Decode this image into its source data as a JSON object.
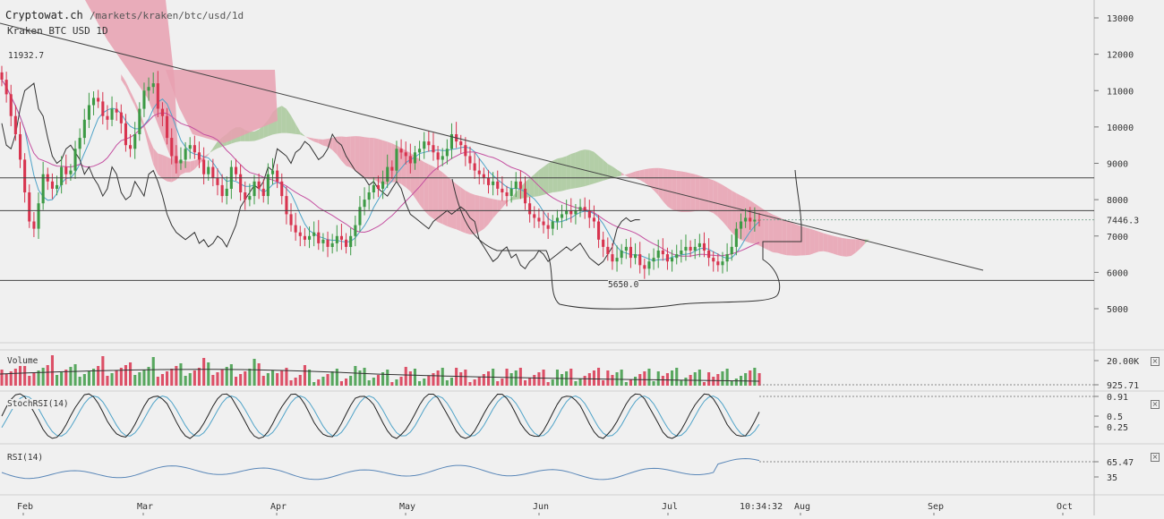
{
  "header": {
    "brand": "Cryptowat.ch",
    "path": "/markets/kraken/btc/usd/1d",
    "subtitle": "Kraken BTC USD 1D"
  },
  "colors": {
    "background": "#f0f0f0",
    "up_candle": "#3d9a45",
    "down_candle": "#d8344f",
    "cloud_bear": "#e8a0b0",
    "cloud_bull": "#a8c89a",
    "tenkan": "#4fa3c8",
    "kijun": "#c44fa0",
    "chikou": "#333333",
    "stoch_k": "#222222",
    "stoch_d": "#4fa3c8",
    "rsi": "#5a87b8"
  },
  "chart_data": [
    {
      "type": "candlestick",
      "name": "main",
      "x": [
        "Feb",
        "Mar",
        "Apr",
        "May",
        "Jun",
        "Jul",
        "Aug",
        "Sep",
        "Oct"
      ],
      "y_ticks": [
        5000,
        6000,
        7000,
        8000,
        9000,
        10000,
        11000,
        12000,
        13000
      ],
      "ylim": [
        4200,
        13500
      ],
      "annotations": {
        "high_label": "11932.7",
        "low_label": "5650.0",
        "last_price": "7446.3",
        "time": "10:34:32"
      },
      "horizontal_levels": [
        8600,
        7700,
        5780
      ],
      "trendline": {
        "from": [
          "Jan 25",
          12900
        ],
        "to": [
          "Sep 6",
          6000
        ]
      },
      "closes": [
        11300,
        10900,
        10300,
        9800,
        9100,
        8200,
        7400,
        7200,
        7900,
        8700,
        8500,
        8300,
        8400,
        8900,
        8700,
        8800,
        9400,
        9700,
        10200,
        10600,
        10800,
        10700,
        10300,
        10200,
        10500,
        10400,
        10100,
        9500,
        9400,
        9800,
        10500,
        11000,
        11100,
        11200,
        10500,
        10300,
        9700,
        9200,
        9000,
        9100,
        9400,
        9500,
        9300,
        9100,
        8700,
        8900,
        8600,
        8400,
        8100,
        8300,
        8900,
        8700,
        8200,
        8000,
        8100,
        8500,
        8300,
        8100,
        8700,
        8800,
        8500,
        8100,
        7600,
        7300,
        7100,
        7000,
        6900,
        7000,
        7100,
        6800,
        6900,
        6700,
        6800,
        7000,
        6900,
        6700,
        7000,
        7300,
        7800,
        8000,
        8200,
        8400,
        8300,
        8500,
        8900,
        8800,
        9400,
        9300,
        9200,
        9000,
        9300,
        9400,
        9600,
        9500,
        9300,
        9100,
        9200,
        9400,
        9800,
        9600,
        9500,
        9200,
        9000,
        8800,
        8700,
        8600,
        8400,
        8500,
        8300,
        8200,
        8100,
        8300,
        8500,
        8300,
        7900,
        7600,
        7500,
        7400,
        7300,
        7200,
        7400,
        7500,
        7600,
        7700,
        7600,
        7700,
        7800,
        7700,
        7500,
        7400,
        6900,
        6700,
        6500,
        6300,
        6400,
        6600,
        6700,
        6400,
        6500,
        6200,
        6100,
        6300,
        6400,
        6600,
        6500,
        6300,
        6400,
        6500,
        6600,
        6700,
        6600,
        6700,
        6800,
        6600,
        6400,
        6300,
        6200,
        6300,
        6500,
        6700,
        7200,
        7400,
        7500,
        7400,
        7450,
        7446
      ]
    },
    {
      "type": "bar",
      "name": "Volume",
      "y_ticks": [
        "20.00K",
        "925.71"
      ]
    },
    {
      "type": "line",
      "name": "StochRSI(14)",
      "y_ticks": [
        "0.91",
        "0.5",
        "0.25"
      ]
    },
    {
      "type": "line",
      "name": "RSI(14)",
      "y_ticks": [
        "65.47",
        "35"
      ]
    }
  ]
}
